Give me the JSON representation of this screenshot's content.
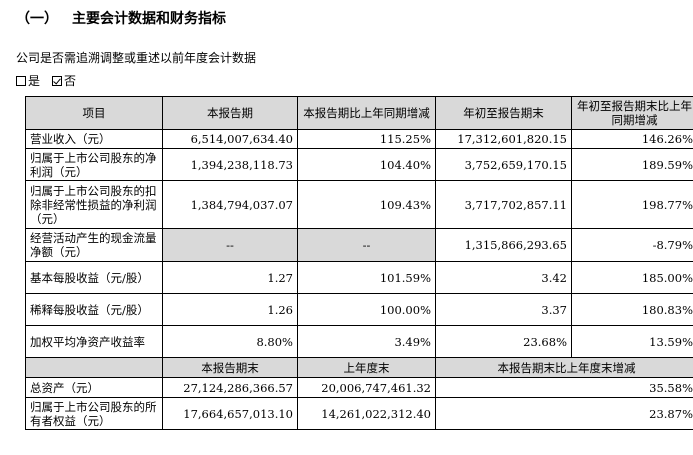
{
  "section": {
    "number": "（一）",
    "title": "主要会计数据和财务指标"
  },
  "question": "公司是否需追溯调整或重述以前年度会计数据",
  "options": [
    {
      "label": "是",
      "checked": false
    },
    {
      "label": "否",
      "checked": true
    }
  ],
  "table_header": [
    "项目",
    "本报告期",
    "本报告期比上年同期增减",
    "年初至报告期末",
    "年初至报告期末比上年同期增减"
  ],
  "rows": [
    {
      "item": "营业收入（元）",
      "current": "6,514,007,634.40",
      "current_change": "115.25%",
      "ytd": "17,312,601,820.15",
      "ytd_change": "146.26%"
    },
    {
      "item": "归属于上市公司股东的净利润（元）",
      "current": "1,394,238,118.73",
      "current_change": "104.40%",
      "ytd": "3,752,659,170.15",
      "ytd_change": "189.59%"
    },
    {
      "item": "归属于上市公司股东的扣除非经常性损益的净利润（元）",
      "current": "1,384,794,037.07",
      "current_change": "109.43%",
      "ytd": "3,717,702,857.11",
      "ytd_change": "198.77%"
    },
    {
      "item": "经营活动产生的现金流量净额（元）",
      "current": "--",
      "current_change": "--",
      "ytd": "1,315,866,293.65",
      "ytd_change": "-8.79%"
    },
    {
      "item": "基本每股收益（元/股）",
      "current": "1.27",
      "current_change": "101.59%",
      "ytd": "3.42",
      "ytd_change": "185.00%"
    },
    {
      "item": "稀释每股收益（元/股）",
      "current": "1.26",
      "current_change": "100.00%",
      "ytd": "3.37",
      "ytd_change": "180.83%"
    },
    {
      "item": "加权平均净资产收益率",
      "current": "8.80%",
      "current_change": "3.49%",
      "ytd": "23.68%",
      "ytd_change": "13.59%"
    }
  ],
  "table_header2": [
    "本报告期末",
    "上年度末",
    "本报告期末比上年度末增减"
  ],
  "rows2": [
    {
      "item": "总资产（元）",
      "current_end": "27,124,286,366.57",
      "prior_end": "20,006,747,461.32",
      "change": "35.58%"
    },
    {
      "item": "归属于上市公司股东的所有者权益（元）",
      "current_end": "17,664,657,013.10",
      "prior_end": "14,261,022,312.40",
      "change": "23.87%"
    }
  ]
}
